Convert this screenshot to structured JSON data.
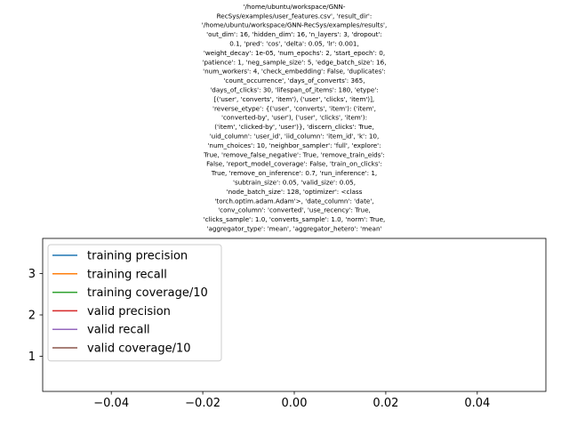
{
  "chart_data": {
    "type": "line",
    "title_lines": [
      "'/home/ubuntu/workspace/GNN-",
      "RecSys/examples/user_features.csv', 'result_dir':",
      "'/home/ubuntu/workspace/GNN-RecSys/examples/results',",
      "'out_dim': 16, 'hidden_dim': 16, 'n_layers': 3, 'dropout':",
      "0.1, 'pred': 'cos', 'delta': 0.05, 'lr': 0.001,",
      "'weight_decay': 1e-05, 'num_epochs': 2, 'start_epoch': 0,",
      "'patience': 1, 'neg_sample_size': 5, 'edge_batch_size': 16,",
      "'num_workers': 4, 'check_embedding': False, 'duplicates':",
      "'count_occurrence', 'days_of_converts': 365,",
      "'days_of_clicks': 30, 'lifespan_of_items': 180, 'etype':",
      "[('user', 'converts', 'item'), ('user', 'clicks', 'item')],",
      "'reverse_etype': {('user', 'converts', 'item'): ('item',",
      "'converted-by', 'user'), ('user', 'clicks', 'item'):",
      "('item', 'clicked-by', 'user')}, 'discern_clicks': True,",
      "'uid_column': 'user_id', 'iid_column': 'item_id', 'k': 10,",
      "'num_choices': 10, 'neighbor_sampler': 'full', 'explore':",
      "True, 'remove_false_negative': True, 'remove_train_eids':",
      "False, 'report_model_coverage': False, 'train_on_clicks':",
      "True, 'remove_on_inference': 0.7, 'run_inference': 1,",
      "'subtrain_size': 0.05, 'valid_size': 0.05,",
      "'node_batch_size': 128, 'optimizer': <class",
      "'torch.optim.adam.Adam'>, 'date_column': 'date',",
      "'conv_column': 'converted', 'use_recency': True,",
      "'clicks_sample': 1.0, 'converts_sample': 1.0, 'norm': True,",
      "'aggregator_type': 'mean', 'aggregator_hetero': 'mean'"
    ],
    "xlabel": "",
    "ylabel": "",
    "xlim": [
      -0.055,
      0.055
    ],
    "ylim": [
      0.15,
      3.85
    ],
    "x_ticks": [
      -0.04,
      -0.02,
      0.0,
      0.02,
      0.04
    ],
    "x_tick_labels": [
      "−0.04",
      "−0.02",
      "0.00",
      "0.02",
      "0.04"
    ],
    "y_ticks": [
      1,
      2,
      3
    ],
    "y_tick_labels": [
      "1",
      "2",
      "3"
    ],
    "grid": false,
    "legend_position": "upper-left",
    "series": [
      {
        "name": "training precision",
        "color": "#1f77b4",
        "x": [],
        "y": []
      },
      {
        "name": "training recall",
        "color": "#ff7f0e",
        "x": [],
        "y": []
      },
      {
        "name": "training coverage/10",
        "color": "#2ca02c",
        "x": [],
        "y": []
      },
      {
        "name": "valid precision",
        "color": "#d62728",
        "x": [],
        "y": []
      },
      {
        "name": "valid recall",
        "color": "#9467bd",
        "x": [],
        "y": []
      },
      {
        "name": "valid coverage/10",
        "color": "#8c564b",
        "x": [],
        "y": []
      }
    ]
  }
}
